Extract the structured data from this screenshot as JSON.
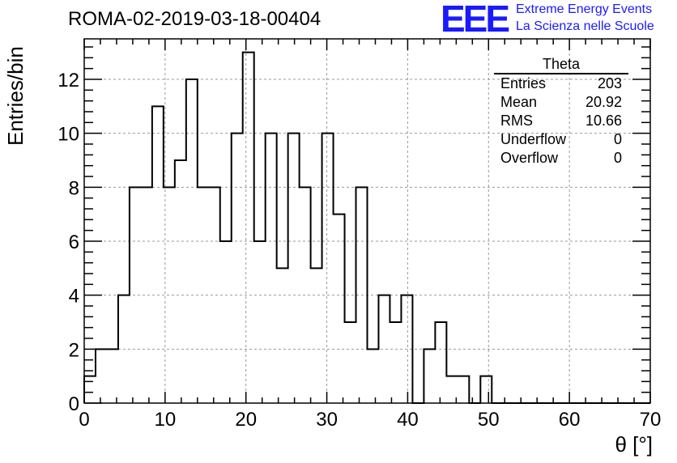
{
  "header": {
    "run_title": "ROMA-02-2019-03-18-00404",
    "logo_text": "EEE",
    "logo_line1": "Extreme Energy Events",
    "logo_line2": "La Scienza nelle Scuole",
    "logo_color": "#1a1aff"
  },
  "stats": {
    "title": "Theta",
    "rows": [
      {
        "label": "Entries",
        "value": "203"
      },
      {
        "label": "Mean",
        "value": "20.92"
      },
      {
        "label": "RMS",
        "value": "10.66"
      },
      {
        "label": "Underflow",
        "value": "0"
      },
      {
        "label": "Overflow",
        "value": "0"
      }
    ]
  },
  "chart_data": {
    "type": "histogram",
    "title": "ROMA-02-2019-03-18-00404",
    "xlabel": "θ [°]",
    "ylabel": "Entries/bin",
    "xlim": [
      0,
      70
    ],
    "ylim": [
      0,
      13.5
    ],
    "xticks": [
      0,
      10,
      20,
      30,
      40,
      50,
      60,
      70
    ],
    "yticks": [
      0,
      2,
      4,
      6,
      8,
      10,
      12
    ],
    "grid": true,
    "bin_width": 1.4,
    "values": [
      1,
      2,
      2,
      4,
      8,
      8,
      11,
      8,
      9,
      12,
      8,
      8,
      6,
      10,
      13,
      6,
      10,
      5,
      10,
      8,
      5,
      10,
      7,
      3,
      8,
      2,
      4,
      3,
      4,
      0,
      2,
      3,
      1,
      1,
      0,
      1,
      0,
      0,
      0,
      0,
      0,
      0,
      0,
      0,
      0,
      0,
      0,
      0,
      0,
      0
    ]
  }
}
